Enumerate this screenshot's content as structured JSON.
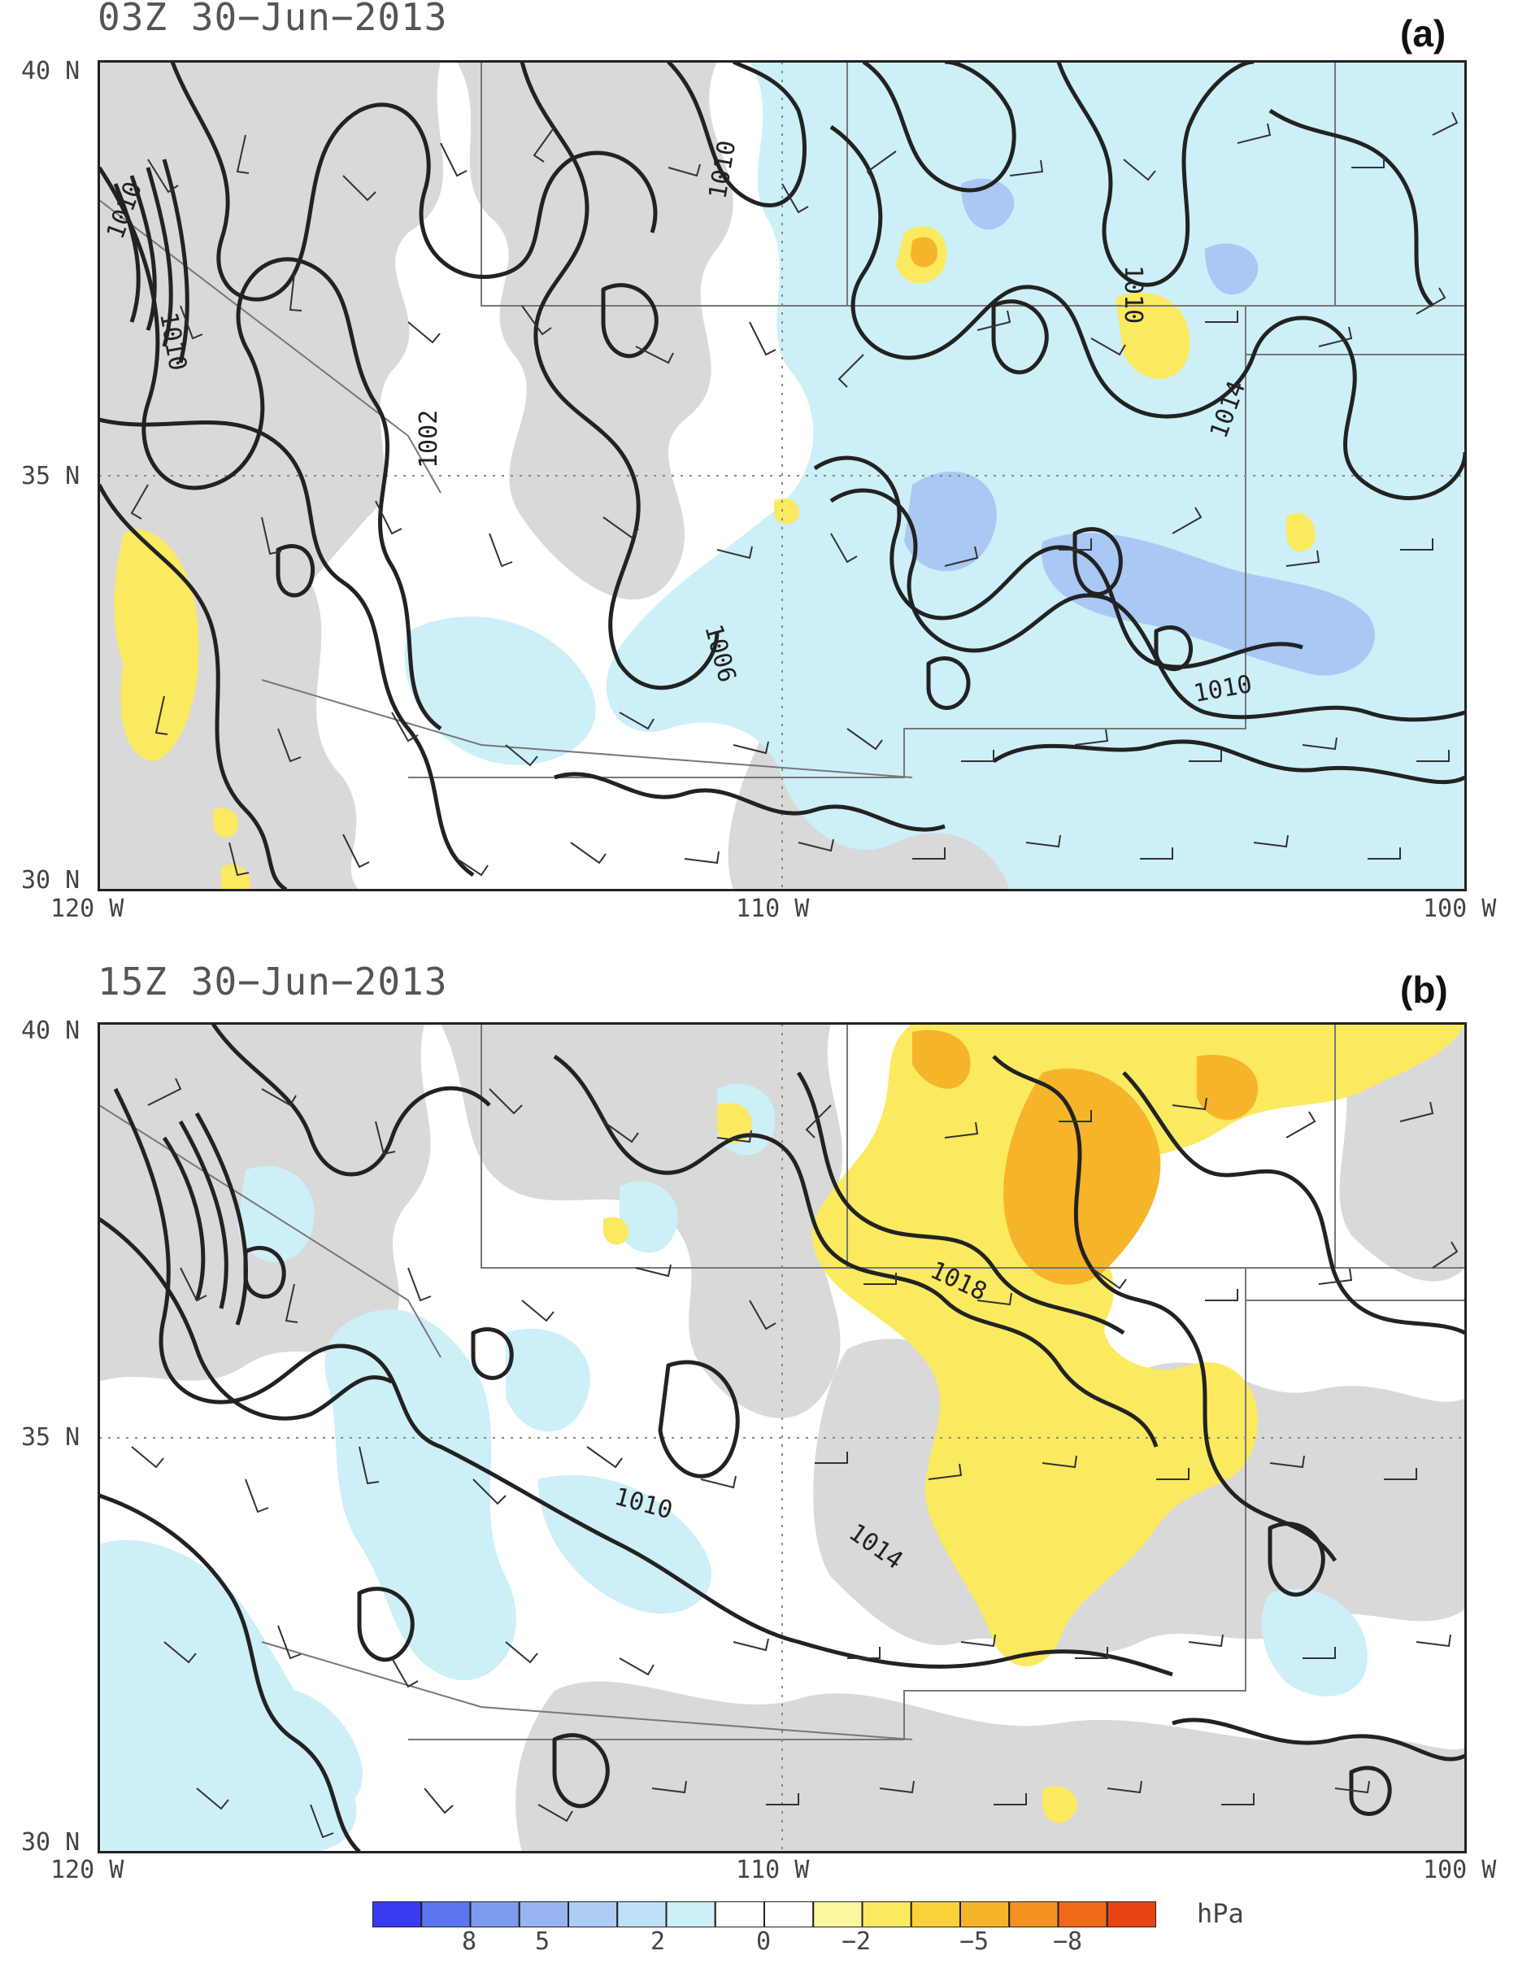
{
  "panels": [
    {
      "title": "03Z 30−Jun−2013",
      "letter": "(a)",
      "lat_labels": [
        "40 N",
        "35 N",
        "30 N"
      ],
      "lon_labels": [
        "120 W",
        "110 W",
        "100 W"
      ],
      "contour_labels": [
        "1010",
        "1010",
        "1010",
        "1002",
        "1006",
        "1010",
        "1014",
        "1010"
      ]
    },
    {
      "title": "15Z 30−Jun−2013",
      "letter": "(b)",
      "lat_labels": [
        "40 N",
        "35 N",
        "30 N"
      ],
      "lon_labels": [
        "120 W",
        "110 W",
        "100 W"
      ],
      "contour_labels": [
        "1018",
        "1010",
        "1014"
      ]
    }
  ],
  "colorbar": {
    "labels": [
      "8",
      "5",
      "2",
      "0",
      "−2",
      "−5",
      "−8"
    ],
    "unit": "hPa",
    "colors": [
      "#3a3af2",
      "#5b75ee",
      "#7d9bef",
      "#98b5f2",
      "#aecdf5",
      "#bfe0f6",
      "#cdeff8",
      "#ffffff",
      "#ffffff",
      "#fdf6a0",
      "#fbe960",
      "#f9d23a",
      "#f6b42a",
      "#f3921f",
      "#ee6a18",
      "#e84312"
    ]
  },
  "colors": {
    "positive_tendency": "#cdeff8",
    "negative_tendency": "#fbe960",
    "terrain_gray": "#d9d9d9",
    "contour": "#222222"
  }
}
